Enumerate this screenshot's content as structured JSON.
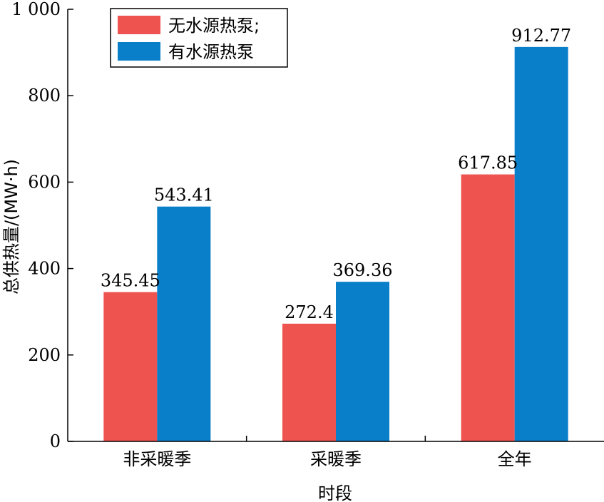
{
  "chart_data": {
    "type": "bar",
    "xlabel": "时段",
    "ylabel": "总供热量/(MW·h)",
    "categories": [
      "非采暖季",
      "采暖季",
      "全年"
    ],
    "series": [
      {
        "name": "无水源热泵;",
        "values": [
          345.45,
          272.4,
          617.85
        ],
        "color": "#ef5350"
      },
      {
        "name": "有水源热泵",
        "values": [
          543.41,
          369.36,
          912.77
        ],
        "color": "#0a7fc9"
      }
    ],
    "value_labels": [
      [
        "345.45",
        "272.4",
        "617.85"
      ],
      [
        "543.41",
        "369.36",
        "912.77"
      ]
    ],
    "ylim": [
      0,
      1000
    ],
    "yticks": [
      0,
      200,
      400,
      600,
      800,
      1000
    ],
    "ytick_labels": [
      "0",
      "200",
      "400",
      "600",
      "800",
      "1 000"
    ],
    "grid": false,
    "legend_position": "top-left"
  }
}
